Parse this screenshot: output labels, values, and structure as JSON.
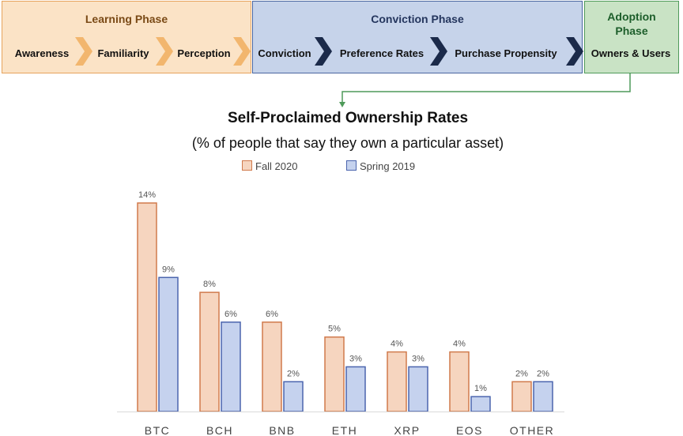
{
  "colors": {
    "fall_fill": "#f6d5bf",
    "fall_stroke": "#d07a4c",
    "spring_fill": "#c5d2ee",
    "spring_stroke": "#4b65ae",
    "learn_chevron": "#f2b66e",
    "conv_chevron": "#1b2a4a",
    "connector": "#4f9a5a"
  },
  "phases": {
    "learning": {
      "title": "Learning Phase",
      "steps": [
        "Awareness",
        "Familiarity",
        "Perception"
      ]
    },
    "conviction": {
      "title": "Conviction Phase",
      "steps": [
        "Conviction",
        "Preference Rates",
        "Purchase Propensity"
      ]
    },
    "adoption": {
      "title_line1": "Adoption",
      "title_line2": "Phase",
      "steps": [
        "Owners & Users"
      ]
    }
  },
  "chart_data": {
    "type": "bar",
    "title": "Self-Proclaimed Ownership Rates",
    "subtitle": "(% of people that say they own a particular asset)",
    "categories": [
      "BTC",
      "BCH",
      "BNB",
      "ETH",
      "XRP",
      "EOS",
      "OTHER"
    ],
    "series": [
      {
        "name": "Fall 2020",
        "values": [
          14,
          8,
          6,
          5,
          4,
          4,
          2
        ],
        "labels": [
          "14%",
          "8%",
          "6%",
          "5%",
          "4%",
          "4%",
          "2%"
        ]
      },
      {
        "name": "Spring 2019",
        "values": [
          9,
          6,
          2,
          3,
          3,
          1,
          2
        ],
        "labels": [
          "9%",
          "6%",
          "2%",
          "3%",
          "3%",
          "1%",
          "2%"
        ]
      }
    ],
    "ylim": [
      0,
      14
    ],
    "legend": "top",
    "grid": false,
    "yaxis_visible": false
  }
}
